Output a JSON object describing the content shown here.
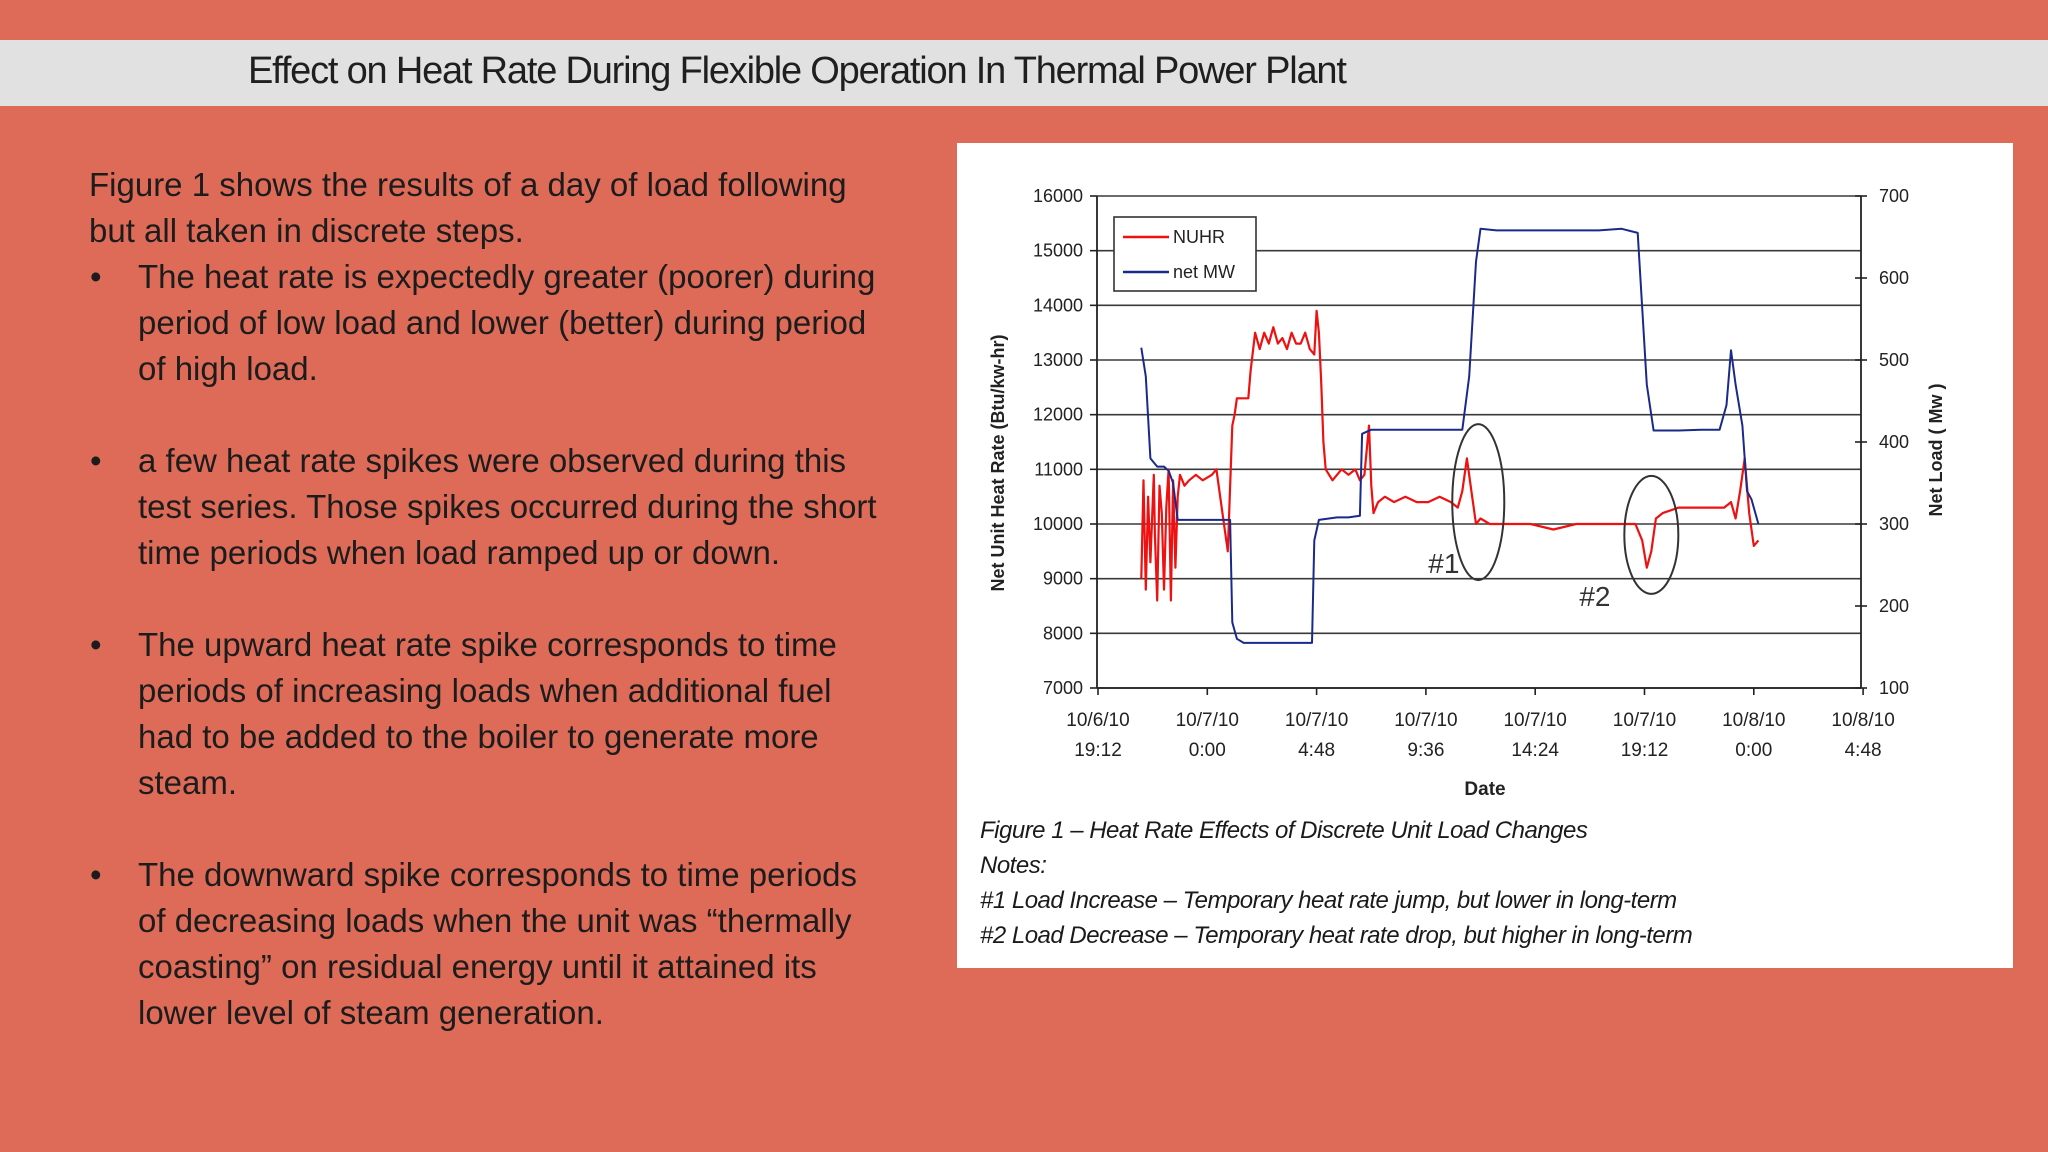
{
  "slide": {
    "title": "Effect on Heat Rate During Flexible Operation In Thermal Power Plant",
    "intro": "Figure 1 shows the results of a day of load following but all taken in discrete steps.",
    "bullet_char": "•",
    "bullets": [
      "The heat rate is expectedly greater (poorer) during period of low load and lower (better) during period of high load.",
      " a few heat rate spikes were observed during this test series. Those spikes occurred during the short time periods when load ramped up or down.",
      "The upward heat rate spike corresponds to time periods of increasing loads when additional fuel had to be added to the boiler to generate more steam.",
      "The downward spike corresponds to time periods of decreasing loads when the unit was “thermally coasting” on residual energy until it attained its lower level of steam generation."
    ]
  },
  "figure": {
    "caption": "Figure 1 – Heat Rate Effects of Discrete Unit Load Changes",
    "notes_label": "Notes:",
    "note1": "#1 Load Increase – Temporary heat rate jump, but lower in long-term",
    "note2": "#2 Load Decrease – Temporary heat rate drop, but higher in long-term"
  },
  "chart_data": {
    "type": "line",
    "xlabel": "Date",
    "ylabel_left": "Net Unit Heat Rate (Btu/kw-hr)",
    "ylabel_right": "Net Load ( Mw )",
    "ylim_left": [
      7000,
      16000
    ],
    "ylim_right": [
      100,
      700
    ],
    "yticks_left": [
      "7000",
      "8000",
      "9000",
      "10000",
      "11000",
      "12000",
      "13000",
      "14000",
      "15000",
      "16000"
    ],
    "yticks_right": [
      "100",
      "200",
      "300",
      "400",
      "500",
      "600",
      "700"
    ],
    "xticks": [
      {
        "date": "10/6/10",
        "time": "19:12",
        "h": 0
      },
      {
        "date": "10/7/10",
        "time": "0:00",
        "h": 4.8
      },
      {
        "date": "10/7/10",
        "time": "4:48",
        "h": 9.6
      },
      {
        "date": "10/7/10",
        "time": "9:36",
        "h": 14.4
      },
      {
        "date": "10/7/10",
        "time": "14:24",
        "h": 19.2
      },
      {
        "date": "10/7/10",
        "time": "19:12",
        "h": 24
      },
      {
        "date": "10/8/10",
        "time": "0:00",
        "h": 28.8
      },
      {
        "date": "10/8/10",
        "time": "4:48",
        "h": 33.6
      }
    ],
    "xlim_hours": [
      0,
      33.6
    ],
    "grid": true,
    "legend_position": "top-left",
    "series": [
      {
        "name": "NUHR",
        "axis": "left",
        "color": "#ee1111",
        "points": [
          [
            1.9,
            9000
          ],
          [
            2.0,
            10800
          ],
          [
            2.1,
            8800
          ],
          [
            2.2,
            10500
          ],
          [
            2.3,
            9300
          ],
          [
            2.45,
            10900
          ],
          [
            2.5,
            9800
          ],
          [
            2.6,
            8600
          ],
          [
            2.7,
            10700
          ],
          [
            2.8,
            10200
          ],
          [
            2.9,
            8800
          ],
          [
            3.0,
            10300
          ],
          [
            3.1,
            11000
          ],
          [
            3.2,
            8600
          ],
          [
            3.3,
            10800
          ],
          [
            3.4,
            9200
          ],
          [
            3.5,
            10500
          ],
          [
            3.6,
            10900
          ],
          [
            3.8,
            10700
          ],
          [
            4.0,
            10800
          ],
          [
            4.3,
            10900
          ],
          [
            4.6,
            10800
          ],
          [
            5.0,
            10900
          ],
          [
            5.2,
            11000
          ],
          [
            5.5,
            10100
          ],
          [
            5.7,
            9500
          ],
          [
            5.9,
            11800
          ],
          [
            6.0,
            12000
          ],
          [
            6.1,
            12300
          ],
          [
            6.3,
            12300
          ],
          [
            6.6,
            12300
          ],
          [
            6.7,
            12800
          ],
          [
            6.9,
            13500
          ],
          [
            7.1,
            13200
          ],
          [
            7.3,
            13500
          ],
          [
            7.5,
            13300
          ],
          [
            7.7,
            13600
          ],
          [
            7.9,
            13300
          ],
          [
            8.1,
            13400
          ],
          [
            8.3,
            13200
          ],
          [
            8.5,
            13500
          ],
          [
            8.7,
            13300
          ],
          [
            8.9,
            13300
          ],
          [
            9.1,
            13500
          ],
          [
            9.3,
            13200
          ],
          [
            9.5,
            13100
          ],
          [
            9.6,
            13900
          ],
          [
            9.7,
            13500
          ],
          [
            9.8,
            12600
          ],
          [
            9.9,
            11500
          ],
          [
            10.0,
            11000
          ],
          [
            10.3,
            10800
          ],
          [
            10.7,
            11000
          ],
          [
            11.0,
            10900
          ],
          [
            11.3,
            11000
          ],
          [
            11.5,
            10800
          ],
          [
            11.7,
            10900
          ],
          [
            11.9,
            11800
          ],
          [
            12.0,
            10700
          ],
          [
            12.1,
            10200
          ],
          [
            12.3,
            10400
          ],
          [
            12.6,
            10500
          ],
          [
            13.0,
            10400
          ],
          [
            13.5,
            10500
          ],
          [
            14.0,
            10400
          ],
          [
            14.5,
            10400
          ],
          [
            15.0,
            10500
          ],
          [
            15.5,
            10400
          ],
          [
            15.8,
            10300
          ],
          [
            16.0,
            10600
          ],
          [
            16.2,
            11200
          ],
          [
            16.4,
            10600
          ],
          [
            16.6,
            10000
          ],
          [
            16.8,
            10100
          ],
          [
            17.2,
            10000
          ],
          [
            18.0,
            10000
          ],
          [
            19.0,
            10000
          ],
          [
            20.0,
            9900
          ],
          [
            21.0,
            10000
          ],
          [
            22.0,
            10000
          ],
          [
            23.0,
            10000
          ],
          [
            23.6,
            10000
          ],
          [
            23.9,
            9700
          ],
          [
            24.1,
            9200
          ],
          [
            24.3,
            9500
          ],
          [
            24.5,
            10100
          ],
          [
            24.8,
            10200
          ],
          [
            25.5,
            10300
          ],
          [
            26.5,
            10300
          ],
          [
            27.5,
            10300
          ],
          [
            27.8,
            10400
          ],
          [
            28.0,
            10100
          ],
          [
            28.2,
            10600
          ],
          [
            28.4,
            11200
          ],
          [
            28.6,
            10200
          ],
          [
            28.8,
            9600
          ],
          [
            29.0,
            9700
          ]
        ]
      },
      {
        "name": "net MW",
        "axis": "right",
        "color": "#1a2a8a",
        "points": [
          [
            1.9,
            515
          ],
          [
            2.1,
            480
          ],
          [
            2.3,
            380
          ],
          [
            2.6,
            370
          ],
          [
            2.9,
            370
          ],
          [
            3.1,
            365
          ],
          [
            3.3,
            350
          ],
          [
            3.5,
            305
          ],
          [
            4.0,
            305
          ],
          [
            5.0,
            305
          ],
          [
            5.8,
            305
          ],
          [
            5.9,
            180
          ],
          [
            6.1,
            160
          ],
          [
            6.4,
            155
          ],
          [
            7.0,
            155
          ],
          [
            8.0,
            155
          ],
          [
            9.0,
            155
          ],
          [
            9.4,
            155
          ],
          [
            9.5,
            280
          ],
          [
            9.7,
            305
          ],
          [
            10.5,
            308
          ],
          [
            11.0,
            308
          ],
          [
            11.5,
            310
          ],
          [
            11.6,
            410
          ],
          [
            12.0,
            415
          ],
          [
            13.0,
            415
          ],
          [
            14.0,
            415
          ],
          [
            15.0,
            415
          ],
          [
            15.5,
            415
          ],
          [
            16.0,
            415
          ],
          [
            16.3,
            480
          ],
          [
            16.6,
            620
          ],
          [
            16.8,
            660
          ],
          [
            17.5,
            658
          ],
          [
            19.0,
            658
          ],
          [
            20.5,
            658
          ],
          [
            22.0,
            658
          ],
          [
            23.0,
            660
          ],
          [
            23.7,
            655
          ],
          [
            24.1,
            470
          ],
          [
            24.4,
            414
          ],
          [
            25.5,
            414
          ],
          [
            26.5,
            415
          ],
          [
            27.3,
            415
          ],
          [
            27.6,
            445
          ],
          [
            27.8,
            512
          ],
          [
            28.0,
            470
          ],
          [
            28.3,
            420
          ],
          [
            28.5,
            340
          ],
          [
            28.7,
            330
          ],
          [
            29.0,
            300
          ]
        ]
      }
    ],
    "annotations": [
      {
        "label": "#1",
        "h": 16.7,
        "value": 10400
      },
      {
        "label": "#2",
        "h": 24.3,
        "value": 9800
      }
    ]
  }
}
